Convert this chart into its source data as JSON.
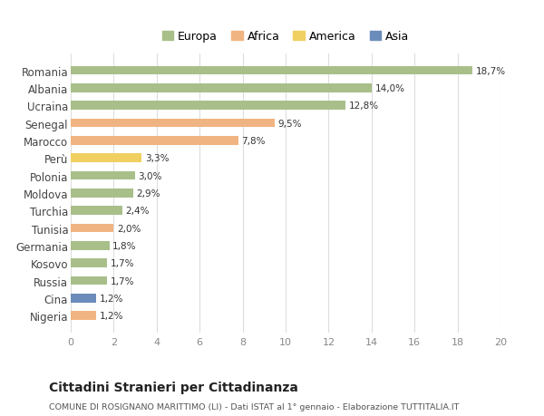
{
  "categories": [
    "Nigeria",
    "Cina",
    "Russia",
    "Kosovo",
    "Germania",
    "Tunisia",
    "Turchia",
    "Moldova",
    "Polonia",
    "Perù",
    "Marocco",
    "Senegal",
    "Ucraina",
    "Albania",
    "Romania"
  ],
  "values": [
    1.2,
    1.2,
    1.7,
    1.7,
    1.8,
    2.0,
    2.4,
    2.9,
    3.0,
    3.3,
    7.8,
    9.5,
    12.8,
    14.0,
    18.7
  ],
  "labels": [
    "1,2%",
    "1,2%",
    "1,7%",
    "1,7%",
    "1,8%",
    "2,0%",
    "2,4%",
    "2,9%",
    "3,0%",
    "3,3%",
    "7,8%",
    "9,5%",
    "12,8%",
    "14,0%",
    "18,7%"
  ],
  "colors": [
    "#f0b482",
    "#6b8cba",
    "#a8bf8a",
    "#a8bf8a",
    "#a8bf8a",
    "#f0b482",
    "#a8bf8a",
    "#a8bf8a",
    "#a8bf8a",
    "#f0d060",
    "#f0b482",
    "#f0b482",
    "#a8bf8a",
    "#a8bf8a",
    "#a8bf8a"
  ],
  "legend_labels": [
    "Europa",
    "Africa",
    "America",
    "Asia"
  ],
  "legend_colors": [
    "#a8bf8a",
    "#f0b482",
    "#f0d060",
    "#6b8cba"
  ],
  "title": "Cittadini Stranieri per Cittadinanza",
  "subtitle": "COMUNE DI ROSIGNANO MARITTIMO (LI) - Dati ISTAT al 1° gennaio - Elaborazione TUTTITALIA.IT",
  "xlim": [
    0,
    20
  ],
  "xticks": [
    0,
    2,
    4,
    6,
    8,
    10,
    12,
    14,
    16,
    18,
    20
  ],
  "bg_color": "#ffffff",
  "grid_color": "#dddddd",
  "bar_height": 0.5
}
